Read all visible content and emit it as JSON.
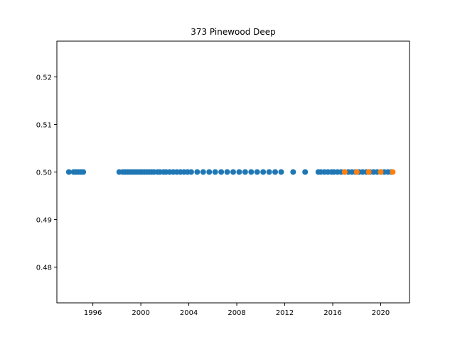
{
  "chart_data": {
    "type": "scatter",
    "title": "373 Pinewood Deep",
    "xlabel": "",
    "ylabel": "",
    "xlim": [
      1993.0,
      2022.4
    ],
    "ylim": [
      0.4725,
      0.5275
    ],
    "x_ticks": [
      1996,
      2000,
      2004,
      2008,
      2012,
      2016,
      2020
    ],
    "x_tick_labels": [
      "1996",
      "2000",
      "2004",
      "2008",
      "2012",
      "2016",
      "2020"
    ],
    "y_ticks": [
      0.48,
      0.49,
      0.5,
      0.51,
      0.52
    ],
    "y_tick_labels": [
      "0.48",
      "0.49",
      "0.50",
      "0.51",
      "0.52"
    ],
    "grid": false,
    "legend": "none",
    "series": [
      {
        "color": "#1f77b4",
        "x": [
          1994.0,
          1994.4,
          1994.6,
          1994.8,
          1995.0,
          1995.2,
          1998.2,
          1998.5,
          1998.7,
          1998.9,
          1999.1,
          1999.3,
          1999.5,
          1999.7,
          1999.9,
          2000.1,
          2000.3,
          2000.5,
          2000.7,
          2000.9,
          2001.1,
          2001.4,
          2001.6,
          2001.9,
          2002.1,
          2002.4,
          2002.7,
          2003.0,
          2003.3,
          2003.6,
          2003.9,
          2004.2,
          2004.7,
          2005.2,
          2005.7,
          2006.2,
          2006.7,
          2007.2,
          2007.7,
          2008.2,
          2008.7,
          2009.2,
          2009.7,
          2010.2,
          2010.7,
          2011.2,
          2011.7,
          2012.7,
          2013.7,
          2014.8,
          2015.0,
          2015.3,
          2015.6,
          2015.9,
          2016.1,
          2016.4,
          2016.7,
          2017.0,
          2017.3,
          2017.6,
          2017.9,
          2018.2,
          2018.5,
          2018.8,
          2019.1,
          2019.4,
          2019.7,
          2020.0,
          2020.3,
          2020.6,
          2020.9
        ],
        "y": [
          0.5,
          0.5,
          0.5,
          0.5,
          0.5,
          0.5,
          0.5,
          0.5,
          0.5,
          0.5,
          0.5,
          0.5,
          0.5,
          0.5,
          0.5,
          0.5,
          0.5,
          0.5,
          0.5,
          0.5,
          0.5,
          0.5,
          0.5,
          0.5,
          0.5,
          0.5,
          0.5,
          0.5,
          0.5,
          0.5,
          0.5,
          0.5,
          0.5,
          0.5,
          0.5,
          0.5,
          0.5,
          0.5,
          0.5,
          0.5,
          0.5,
          0.5,
          0.5,
          0.5,
          0.5,
          0.5,
          0.5,
          0.5,
          0.5,
          0.5,
          0.5,
          0.5,
          0.5,
          0.5,
          0.5,
          0.5,
          0.5,
          0.5,
          0.5,
          0.5,
          0.5,
          0.5,
          0.5,
          0.5,
          0.5,
          0.5,
          0.5,
          0.5,
          0.5,
          0.5,
          0.5
        ]
      },
      {
        "color": "#ff7f0e",
        "x": [
          2017.0,
          2018.0,
          2019.0,
          2020.0,
          2021.0
        ],
        "y": [
          0.5,
          0.5,
          0.5,
          0.5,
          0.5
        ]
      }
    ]
  }
}
